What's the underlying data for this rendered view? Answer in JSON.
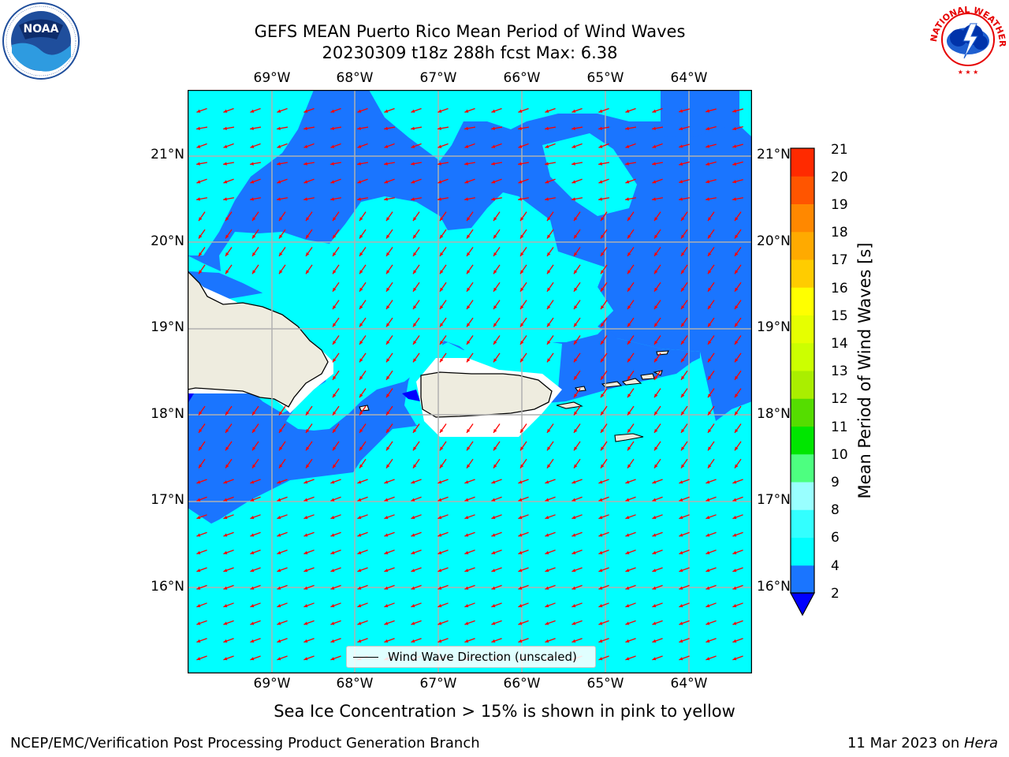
{
  "title": {
    "line1": "GEFS MEAN Puerto Rico Mean Period of Wind Waves",
    "line2": "20230309 t18z 288h fcst   Max: 6.38"
  },
  "axes": {
    "lon_labels": [
      "69°W",
      "68°W",
      "67°W",
      "66°W",
      "65°W",
      "64°W"
    ],
    "lat_labels": [
      "21°N",
      "20°N",
      "19°N",
      "18°N",
      "17°N",
      "16°N"
    ]
  },
  "colorbar": {
    "label": "Mean Period of Wind Waves [s]",
    "ticks": [
      "2",
      "4",
      "6",
      "8",
      "9",
      "10",
      "11",
      "12",
      "13",
      "14",
      "15",
      "16",
      "17",
      "18",
      "19",
      "20",
      "21"
    ],
    "colors": [
      "#1a75ff",
      "#00ffff",
      "#33ffff",
      "#99ffff",
      "#4dff80",
      "#00e600",
      "#55dd00",
      "#aaee00",
      "#ccff00",
      "#e6ff00",
      "#ffff00",
      "#ffcc00",
      "#ffaa00",
      "#ff8800",
      "#ff5500",
      "#ff2a00"
    ],
    "under_color": "#0000ff"
  },
  "legend": {
    "label": "Wind Wave Direction (unscaled)"
  },
  "colors": {
    "land": "#eeecdf",
    "sea_low": "#1a75ff",
    "sea_high": "#00ffff",
    "arrow": "#ff0000",
    "grid": "#b0b0b0"
  },
  "ice_note": "Sea Ice Concentration > 15% is shown in pink to yellow",
  "footer": {
    "left": "NCEP/EMC/Verification Post Processing Product Generation Branch",
    "right_date": "11 Mar 2023 on ",
    "right_host": "Hera"
  },
  "logos": {
    "left": "NOAA",
    "right": "NATIONAL WEATHER SERVICE"
  }
}
